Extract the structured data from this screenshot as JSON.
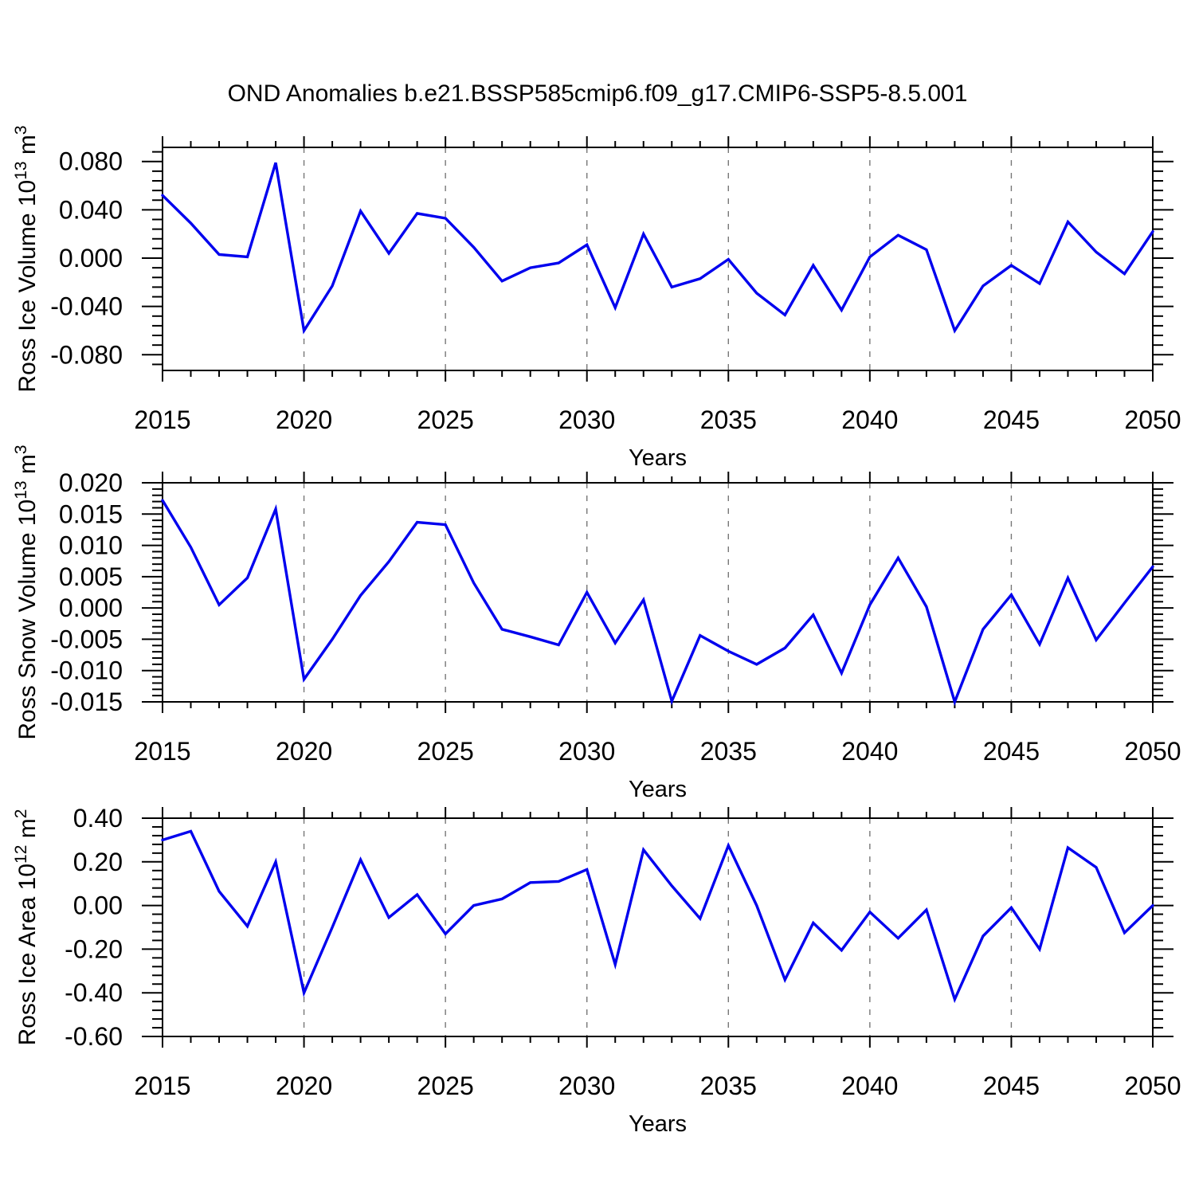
{
  "title": "OND Anomalies b.e21.BSSP585cmip6.f09_g17.CMIP6-SSP5-8.5.001",
  "colors": {
    "line": "#0000EE",
    "grid": "#777777",
    "axis": "#000000",
    "background": "#FFFFFF",
    "text": "#000000"
  },
  "chart_data": [
    {
      "type": "line",
      "title": "",
      "xlabel": "Years",
      "ylabel": "Ross Ice Volume 10^13 m^3",
      "ylabel_parts": [
        {
          "t": "Ross Ice Volume 10",
          "sup": false
        },
        {
          "t": "13",
          "sup": true
        },
        {
          "t": " m",
          "sup": false
        },
        {
          "t": "3",
          "sup": true
        }
      ],
      "xlim": [
        2015,
        2050
      ],
      "ylim": [
        -0.093,
        0.0917
      ],
      "grid": "vertical-dashed",
      "legend": "none",
      "gridlines": [
        2020,
        2025,
        2030,
        2035,
        2040,
        2045
      ],
      "xticks": [
        {
          "v": 2015,
          "label": "2015"
        },
        {
          "v": 2020,
          "label": "2020"
        },
        {
          "v": 2025,
          "label": "2025"
        },
        {
          "v": 2030,
          "label": "2030"
        },
        {
          "v": 2035,
          "label": "2035"
        },
        {
          "v": 2040,
          "label": "2040"
        },
        {
          "v": 2045,
          "label": "2045"
        },
        {
          "v": 2050,
          "label": "2050"
        }
      ],
      "x_minor_step": 1,
      "yticks": [
        {
          "v": 0.08,
          "label": "0.080"
        },
        {
          "v": 0.04,
          "label": "0.040"
        },
        {
          "v": 0.0,
          "label": "0.000"
        },
        {
          "v": -0.04,
          "label": "-0.040"
        },
        {
          "v": -0.08,
          "label": "-0.080"
        }
      ],
      "y_minor_step": 0.008,
      "x": [
        2015,
        2016,
        2017,
        2018,
        2019,
        2020,
        2021,
        2022,
        2023,
        2024,
        2025,
        2026,
        2027,
        2028,
        2029,
        2030,
        2031,
        2032,
        2033,
        2034,
        2035,
        2036,
        2037,
        2038,
        2039,
        2040,
        2041,
        2042,
        2043,
        2044,
        2045,
        2046,
        2047,
        2048,
        2049,
        2050
      ],
      "values": [
        0.052,
        0.029,
        0.003,
        0.001,
        0.079,
        -0.06,
        -0.023,
        0.039,
        0.004,
        0.037,
        0.033,
        0.009,
        -0.019,
        -0.008,
        -0.004,
        0.011,
        -0.041,
        0.02,
        -0.024,
        -0.017,
        -0.001,
        -0.029,
        -0.047,
        -0.006,
        -0.043,
        0.001,
        0.019,
        0.007,
        -0.06,
        -0.023,
        -0.006,
        -0.021,
        0.03,
        0.005,
        -0.013,
        0.022
      ]
    },
    {
      "type": "line",
      "title": "",
      "xlabel": "Years",
      "ylabel": "Ross Snow Volume 10^13 m^3",
      "ylabel_parts": [
        {
          "t": "Ross Snow Volume 10",
          "sup": false
        },
        {
          "t": "13",
          "sup": true
        },
        {
          "t": " m",
          "sup": false
        },
        {
          "t": "3",
          "sup": true
        }
      ],
      "xlim": [
        2015,
        2050
      ],
      "ylim": [
        -0.015,
        0.02
      ],
      "grid": "vertical-dashed",
      "legend": "none",
      "gridlines": [
        2020,
        2025,
        2030,
        2035,
        2040,
        2045
      ],
      "xticks": [
        {
          "v": 2015,
          "label": "2015"
        },
        {
          "v": 2020,
          "label": "2020"
        },
        {
          "v": 2025,
          "label": "2025"
        },
        {
          "v": 2030,
          "label": "2030"
        },
        {
          "v": 2035,
          "label": "2035"
        },
        {
          "v": 2040,
          "label": "2040"
        },
        {
          "v": 2045,
          "label": "2045"
        },
        {
          "v": 2050,
          "label": "2050"
        }
      ],
      "x_minor_step": 1,
      "yticks": [
        {
          "v": 0.02,
          "label": "0.020"
        },
        {
          "v": 0.015,
          "label": "0.015"
        },
        {
          "v": 0.01,
          "label": "0.010"
        },
        {
          "v": 0.005,
          "label": "0.005"
        },
        {
          "v": 0.0,
          "label": "0.000"
        },
        {
          "v": -0.005,
          "label": "-0.005"
        },
        {
          "v": -0.01,
          "label": "-0.010"
        },
        {
          "v": -0.015,
          "label": "-0.015"
        }
      ],
      "y_minor_step": 0.001,
      "x": [
        2015,
        2016,
        2017,
        2018,
        2019,
        2020,
        2021,
        2022,
        2023,
        2024,
        2025,
        2026,
        2027,
        2028,
        2029,
        2030,
        2031,
        2032,
        2033,
        2034,
        2035,
        2036,
        2037,
        2038,
        2039,
        2040,
        2041,
        2042,
        2043,
        2044,
        2045,
        2046,
        2047,
        2048,
        2049,
        2050
      ],
      "values": [
        0.0172,
        0.0097,
        0.0005,
        0.0048,
        0.0158,
        -0.0114,
        -0.005,
        0.002,
        0.0074,
        0.0137,
        0.0133,
        0.004,
        -0.0034,
        -0.0046,
        -0.0059,
        0.0025,
        -0.0056,
        0.0013,
        -0.0149,
        -0.0044,
        -0.0069,
        -0.009,
        -0.0064,
        -0.0011,
        -0.0104,
        0.0005,
        0.008,
        0.0002,
        -0.015,
        -0.0034,
        0.0021,
        -0.0058,
        0.0048,
        -0.0051,
        0.0008,
        0.0066
      ]
    },
    {
      "type": "line",
      "title": "",
      "xlabel": "Years",
      "ylabel": "Ross Ice Area 10^12 m^2",
      "ylabel_parts": [
        {
          "t": "Ross Ice Area 10",
          "sup": false
        },
        {
          "t": "12",
          "sup": true
        },
        {
          "t": " m",
          "sup": false
        },
        {
          "t": "2",
          "sup": true
        }
      ],
      "xlim": [
        2015,
        2050
      ],
      "ylim": [
        -0.6,
        0.4
      ],
      "grid": "vertical-dashed",
      "legend": "none",
      "gridlines": [
        2020,
        2025,
        2030,
        2035,
        2040,
        2045
      ],
      "xticks": [
        {
          "v": 2015,
          "label": "2015"
        },
        {
          "v": 2020,
          "label": "2020"
        },
        {
          "v": 2025,
          "label": "2025"
        },
        {
          "v": 2030,
          "label": "2030"
        },
        {
          "v": 2035,
          "label": "2035"
        },
        {
          "v": 2040,
          "label": "2040"
        },
        {
          "v": 2045,
          "label": "2045"
        },
        {
          "v": 2050,
          "label": "2050"
        }
      ],
      "x_minor_step": 1,
      "yticks": [
        {
          "v": 0.4,
          "label": "0.40"
        },
        {
          "v": 0.2,
          "label": "0.20"
        },
        {
          "v": 0.0,
          "label": "0.00"
        },
        {
          "v": -0.2,
          "label": "-0.20"
        },
        {
          "v": -0.4,
          "label": "-0.40"
        },
        {
          "v": -0.6,
          "label": "-0.60"
        }
      ],
      "y_minor_step": 0.04,
      "x": [
        2015,
        2016,
        2017,
        2018,
        2019,
        2020,
        2021,
        2022,
        2023,
        2024,
        2025,
        2026,
        2027,
        2028,
        2029,
        2030,
        2031,
        2032,
        2033,
        2034,
        2035,
        2036,
        2037,
        2038,
        2039,
        2040,
        2041,
        2042,
        2043,
        2044,
        2045,
        2046,
        2047,
        2048,
        2049,
        2050
      ],
      "values": [
        0.3,
        0.34,
        0.065,
        -0.095,
        0.2,
        -0.4,
        -0.1,
        0.21,
        -0.055,
        0.05,
        -0.13,
        0.0,
        0.03,
        0.105,
        0.11,
        0.165,
        -0.27,
        0.255,
        0.09,
        -0.06,
        0.275,
        0.0,
        -0.34,
        -0.08,
        -0.205,
        -0.03,
        -0.15,
        -0.02,
        -0.43,
        -0.14,
        -0.01,
        -0.2,
        0.265,
        0.175,
        -0.125,
        0.0
      ]
    }
  ]
}
